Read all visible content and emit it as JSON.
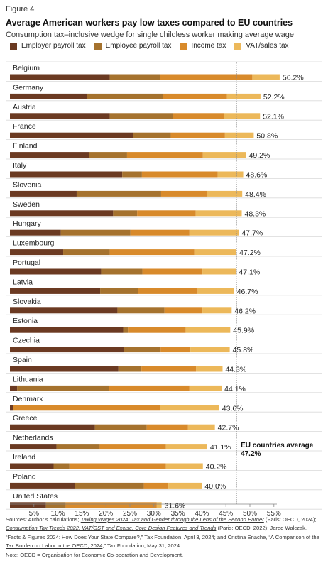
{
  "figure_label": "Figure 4",
  "title": "Average American workers pay low taxes compared to EU countries",
  "subtitle": "Consumption tax–inclusive wedge for single childless worker making average wage",
  "colors": {
    "employer": "#6b3a22",
    "employee": "#a5722e",
    "income": "#d88a2b",
    "vat": "#ecb85a"
  },
  "chart_data": {
    "type": "bar",
    "orientation": "horizontal",
    "stacked": true,
    "categories": [
      "Belgium",
      "Germany",
      "Austria",
      "France",
      "Finland",
      "Italy",
      "Slovenia",
      "Sweden",
      "Hungary",
      "Luxembourg",
      "Portugal",
      "Latvia",
      "Slovakia",
      "Estonia",
      "Czechia",
      "Spain",
      "Lithuania",
      "Denmark",
      "Greece",
      "Netherlands",
      "Ireland",
      "Poland",
      "United States"
    ],
    "series": [
      {
        "name": "Employer payroll tax",
        "values": [
          20.8,
          16.1,
          20.8,
          25.7,
          16.5,
          23.4,
          13.9,
          21.5,
          10.6,
          11.1,
          19.0,
          18.8,
          22.4,
          23.6,
          23.8,
          22.6,
          1.5,
          0.6,
          17.7,
          9.7,
          9.1,
          13.5,
          7.5
        ]
      },
      {
        "name": "Employee payroll tax",
        "values": [
          10.5,
          15.8,
          13.1,
          7.8,
          7.9,
          4.1,
          17.6,
          5.0,
          14.5,
          9.7,
          8.6,
          7.9,
          9.8,
          1.0,
          7.6,
          4.8,
          19.2,
          0.0,
          10.8,
          9.0,
          3.3,
          14.4,
          4.1
        ]
      },
      {
        "name": "Income tax",
        "values": [
          19.2,
          13.3,
          10.7,
          11.3,
          15.8,
          15.8,
          9.5,
          12.2,
          12.3,
          17.6,
          12.5,
          12.4,
          7.9,
          12.0,
          6.2,
          11.4,
          16.7,
          30.7,
          8.6,
          13.8,
          20.1,
          5.1,
          19.0
        ]
      },
      {
        "name": "VAT/sales tax",
        "values": [
          5.7,
          7.0,
          7.5,
          6.0,
          9.0,
          5.3,
          7.4,
          9.6,
          10.3,
          8.8,
          7.0,
          7.6,
          6.1,
          9.3,
          8.2,
          5.5,
          6.7,
          12.3,
          5.6,
          8.6,
          7.7,
          7.0,
          1.0
        ]
      }
    ],
    "totals": [
      "56.2%",
      "52.2%",
      "52.1%",
      "50.8%",
      "49.2%",
      "48.6%",
      "48.4%",
      "48.3%",
      "47.7%",
      "47.2%",
      "47.1%",
      "46.7%",
      "46.2%",
      "45.9%",
      "45.8%",
      "44.3%",
      "44.1%",
      "43.6%",
      "42.7%",
      "41.1%",
      "40.2%",
      "40.0%",
      "31.6%"
    ],
    "xlim": [
      0,
      57
    ],
    "xticks": [
      5,
      10,
      15,
      20,
      25,
      30,
      35,
      40,
      45,
      50,
      55
    ],
    "xtick_labels": [
      "5%",
      "10%",
      "15%",
      "20%",
      "25%",
      "30%",
      "35%",
      "40%",
      "45%",
      "50%",
      "55%"
    ],
    "legend_position": "top",
    "reference_line": {
      "value": 47.2,
      "label_line1": "EU countries average",
      "label_line2": "47.2%"
    }
  },
  "sources_note": {
    "p1": "Sources: Author’s calculations; ",
    "t1": "Taxing Wages 2024: Tax and Gender through the Lens of the Second Earner",
    "p2": " (Paris: OECD, 2024); ",
    "t2": "Consumption Tax Trends 2022: VAT/GST and Excise, Core Design Features and Trends",
    "p3": " (Paris: OECD, 2022); Jared Walczak, “",
    "t3": "Facts & Figures 2024: How Does Your State Compare?",
    "p4": ",” Tax Foundation, April 3, 2024; and Cristina Enache, “",
    "t4": "A Comparison of the Tax Burden on Labor in the OECD, 2024",
    "p5": ",” Tax Foundation, May 31, 2024.",
    "note": "Note: OECD = Organisation for Economic Co-operation and Development."
  }
}
